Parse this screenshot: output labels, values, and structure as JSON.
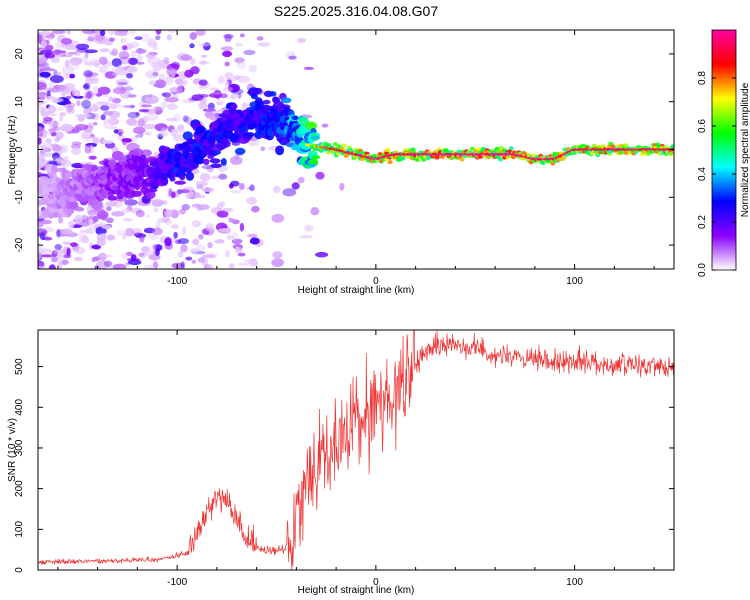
{
  "title": "S225.2025.316.04.08.G07",
  "chart_data": [
    {
      "type": "heatmap",
      "xlabel": "Height of straight line (km)",
      "ylabel": "Frequency (Hz)",
      "xlim": [
        -170,
        150
      ],
      "ylim": [
        -25,
        25
      ],
      "xticks": [
        -100,
        0,
        100
      ],
      "xtick_labels": [
        "-100",
        "0",
        "100"
      ],
      "yticks": [
        -20,
        -10,
        0,
        10,
        20
      ],
      "ytick_labels": [
        "-20",
        "-10",
        "0",
        "10",
        "20"
      ],
      "colorbar": {
        "label": "Normalized spectral amplitude",
        "range": [
          0,
          1
        ],
        "ticks": [
          0.0,
          0.2,
          0.4,
          0.6,
          0.8
        ],
        "tick_labels": [
          "0.0",
          "0.2",
          "0.4",
          "0.6",
          "0.8"
        ],
        "colors": [
          "#ffffff",
          "#8b00ff",
          "#0000ff",
          "#00ffff",
          "#00ff00",
          "#ffff00",
          "#ff0000",
          "#ff00a0"
        ]
      },
      "ridge": {
        "x": [
          -170,
          -115,
          -100,
          -80,
          -60,
          -45,
          -35,
          -20,
          -10,
          0,
          10,
          30,
          70,
          80,
          90,
          100,
          120,
          150
        ],
        "y": [
          -10,
          -5,
          -3,
          3,
          7,
          6,
          1,
          0,
          -1,
          -2,
          -1,
          -1,
          -1,
          -2,
          -2,
          0,
          0,
          0
        ],
        "amplitude": [
          0.05,
          0.2,
          0.3,
          0.3,
          0.3,
          0.35,
          0.55,
          0.7,
          0.8,
          0.85,
          0.8,
          0.85,
          0.85,
          0.8,
          0.8,
          0.8,
          0.8,
          0.8
        ]
      }
    },
    {
      "type": "line",
      "xlabel": "Height of straight line (km)",
      "ylabel": "SNR (10 * v/v)",
      "xlim": [
        -170,
        150
      ],
      "ylim": [
        0,
        590
      ],
      "xticks": [
        -100,
        0,
        100
      ],
      "xtick_labels": [
        "-100",
        "0",
        "100"
      ],
      "yticks": [
        0,
        100,
        200,
        300,
        400,
        500
      ],
      "ytick_labels": [
        "0",
        "100",
        "200",
        "300",
        "400",
        "500"
      ],
      "color": "#ee3333",
      "series": [
        {
          "name": "SNR",
          "x": [
            -170,
            -140,
            -110,
            -95,
            -88,
            -84,
            -80,
            -76,
            -72,
            -68,
            -60,
            -52,
            -46,
            -42,
            -38,
            -34,
            -30,
            -25,
            -20,
            -15,
            -10,
            -5,
            0,
            5,
            10,
            15,
            20,
            25,
            30,
            40,
            50,
            60,
            70,
            80,
            90,
            100,
            110,
            120,
            130,
            140,
            150
          ],
          "y": [
            20,
            22,
            25,
            40,
            110,
            160,
            190,
            170,
            140,
            90,
            55,
            45,
            50,
            100,
            180,
            230,
            270,
            290,
            310,
            330,
            360,
            380,
            400,
            420,
            440,
            460,
            500,
            540,
            550,
            555,
            545,
            530,
            520,
            515,
            510,
            515,
            510,
            505,
            500,
            505,
            500
          ]
        }
      ]
    }
  ]
}
